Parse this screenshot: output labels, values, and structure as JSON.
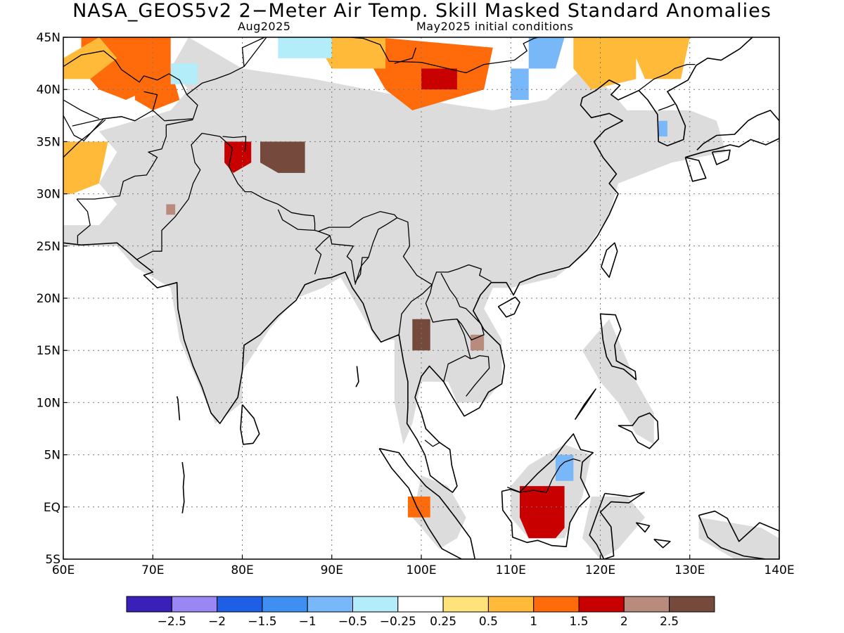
{
  "title": "NASA_GEOS5v2 2−Meter Air Temp. Skill Masked Standard Anomalies",
  "subtitle_left": "Aug2025",
  "subtitle_right": "May2025 initial conditions",
  "map": {
    "lon_range": [
      60,
      140
    ],
    "lat_range": [
      -5,
      45
    ],
    "x_ticks": [
      "60E",
      "70E",
      "80E",
      "90E",
      "100E",
      "110E",
      "120E",
      "130E",
      "140E"
    ],
    "y_ticks": [
      "5S",
      "EQ",
      "5N",
      "10N",
      "15N",
      "20N",
      "25N",
      "30N",
      "35N",
      "40N",
      "45N"
    ],
    "grid": "dotted",
    "mask_color": "#dcdcdc",
    "coastline_color": "#000000"
  },
  "colorbar": {
    "colors": [
      "#3a1fb8",
      "#9a86f5",
      "#1e5fe6",
      "#3f8ff2",
      "#78b8f8",
      "#b2edf9",
      "#ffffff",
      "#ffe27a",
      "#ffba3a",
      "#ff6a0a",
      "#c80000",
      "#b98a7e",
      "#76493d"
    ],
    "labels": [
      "−2.5",
      "−2",
      "−1.5",
      "−1",
      "−0.5",
      "−0.25",
      "0.25",
      "0.5",
      "1",
      "1.5",
      "2",
      "2.5"
    ]
  },
  "anomalies": [
    {
      "lon": 66,
      "lat": 42,
      "value": 1.3
    },
    {
      "lon": 70,
      "lat": 41,
      "value": 1.2
    },
    {
      "lon": 63,
      "lat": 43,
      "value": 0.8
    },
    {
      "lon": 62,
      "lat": 32,
      "value": 0.7
    },
    {
      "lon": 73,
      "lat": 41.5,
      "value": -0.5
    },
    {
      "lon": 83,
      "lat": 34,
      "value": 2.7
    },
    {
      "lon": 79,
      "lat": 34,
      "value": 1.8
    },
    {
      "lon": 72,
      "lat": 28,
      "value": 2.1
    },
    {
      "lon": 98,
      "lat": 41,
      "value": 1.2
    },
    {
      "lon": 102,
      "lat": 41,
      "value": 1.8
    },
    {
      "lon": 92,
      "lat": 43.5,
      "value": 0.6
    },
    {
      "lon": 87,
      "lat": 44,
      "value": -0.4
    },
    {
      "lon": 113,
      "lat": 43,
      "value": -0.8
    },
    {
      "lon": 111,
      "lat": 40,
      "value": -0.9
    },
    {
      "lon": 120,
      "lat": 43,
      "value": 0.7
    },
    {
      "lon": 126,
      "lat": 42,
      "value": 0.6
    },
    {
      "lon": 127,
      "lat": 36,
      "value": -0.6
    },
    {
      "lon": 100,
      "lat": 16.5,
      "value": 2.7
    },
    {
      "lon": 106,
      "lat": 15.5,
      "value": 2.2
    },
    {
      "lon": 113,
      "lat": -0.5,
      "value": 1.7
    },
    {
      "lon": 100,
      "lat": 0,
      "value": 1.1
    },
    {
      "lon": 116,
      "lat": 4,
      "value": -0.9
    }
  ]
}
